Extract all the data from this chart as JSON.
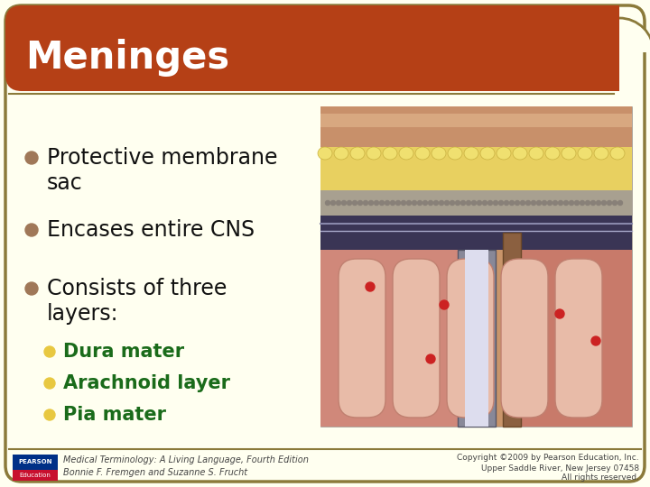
{
  "title": "Meninges",
  "title_bg_color": "#B54016",
  "title_text_color": "#FFFFFF",
  "slide_bg_color": "#FFFFF0",
  "border_color": "#8B7A3A",
  "bullet_color": "#A07858",
  "sub_bullet_color": "#E8C840",
  "main_text_color": "#111111",
  "sub_text_color": "#1A6B1A",
  "bullet_points_line1": [
    "Protective membrane",
    "Encases entire CNS",
    "Consists of three"
  ],
  "bullet_points_line2": [
    "sac",
    "",
    "layers:"
  ],
  "sub_bullets": [
    "Dura mater",
    "Arachnoid layer",
    "Pia mater"
  ],
  "footer_left_line1": "Medical Terminology: A Living Language, Fourth Edition",
  "footer_left_line2": "Bonnie F. Fremgen and Suzanne S. Frucht",
  "footer_right_line1": "Copyright ©2009 by Pearson Education, Inc.",
  "footer_right_line2": "Upper Saddle River, New Jersey 07458",
  "footer_right_line3": "All rights reserved.",
  "pearson_box_color1": "#003087",
  "pearson_box_color2": "#C8102E",
  "img_skin_color": "#C9956A",
  "img_yellow_color": "#E8D060",
  "img_gray_color": "#A09888",
  "img_dark_color": "#4A3A5A",
  "img_pink_color": "#D4927A",
  "img_light_pink": "#E8BBA8",
  "img_brown": "#7A5848"
}
